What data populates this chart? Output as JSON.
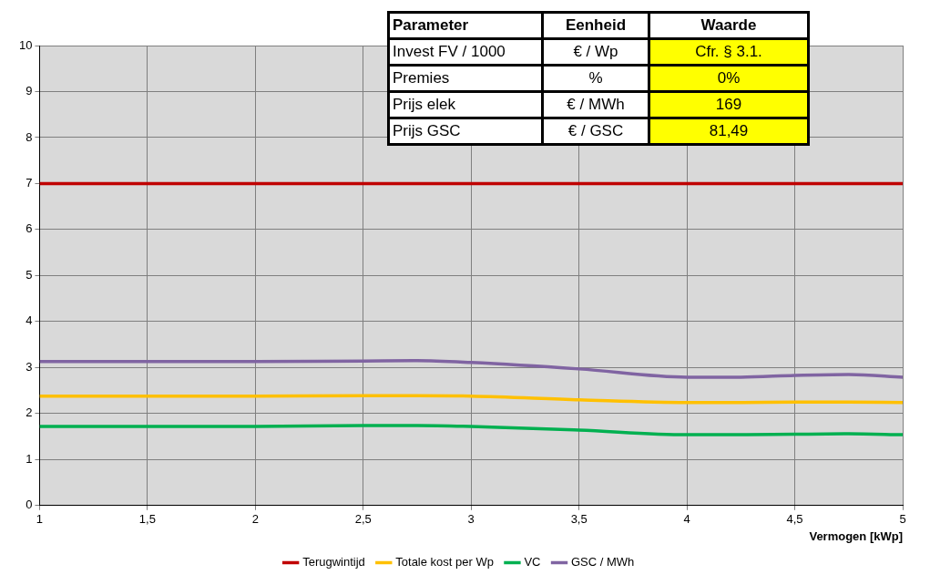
{
  "chart_data": {
    "type": "line",
    "xlabel": "Vermogen [kWp]",
    "x": [
      1,
      1.5,
      2,
      2.5,
      2.75,
      3,
      3.5,
      4,
      4.25,
      4.5,
      4.75,
      5
    ],
    "series": [
      {
        "name": "Terugwintijd",
        "color": "#c00000",
        "values": [
          7,
          7,
          7,
          7,
          7,
          7,
          7,
          7,
          7,
          7,
          7,
          7
        ]
      },
      {
        "name": "Totale kost per Wp",
        "color": "#ffc000",
        "values": [
          2.38,
          2.38,
          2.38,
          2.39,
          2.39,
          2.38,
          2.3,
          2.24,
          2.24,
          2.25,
          2.25,
          2.24
        ]
      },
      {
        "name": "VC",
        "color": "#00b050",
        "values": [
          1.72,
          1.72,
          1.72,
          1.74,
          1.74,
          1.72,
          1.64,
          1.54,
          1.54,
          1.55,
          1.56,
          1.54
        ]
      },
      {
        "name": "GSC / MWh",
        "color": "#8064a2",
        "values": [
          3.13,
          3.13,
          3.13,
          3.14,
          3.15,
          3.11,
          2.97,
          2.79,
          2.79,
          2.83,
          2.85,
          2.79
        ]
      }
    ],
    "xlim": [
      1,
      5
    ],
    "xticks": [
      1,
      {
        "value": 1.5,
        "label": "1,5"
      },
      2,
      {
        "value": 2.5,
        "label": "2,5"
      },
      3,
      {
        "value": 3.5,
        "label": "3,5"
      },
      4,
      {
        "value": 4.5,
        "label": "4,5"
      },
      5
    ],
    "ylim": [
      0,
      10
    ],
    "yticks": [
      0,
      1,
      2,
      3,
      4,
      5,
      6,
      7,
      8,
      9,
      10
    ],
    "grid": true,
    "legend": "bottom",
    "marker": "none",
    "line_style": "solid",
    "annotations": [
      "Parameter",
      "Eenheid",
      "Waarde",
      "Invest FV / 1000",
      "€ / Wp",
      "Cfr. § 3.1.",
      "Premies",
      "%",
      "0%",
      "Prijs elek",
      "€ / MWh",
      "169",
      "Prijs GSC",
      "€ / GSC",
      "81,49"
    ]
  }
}
